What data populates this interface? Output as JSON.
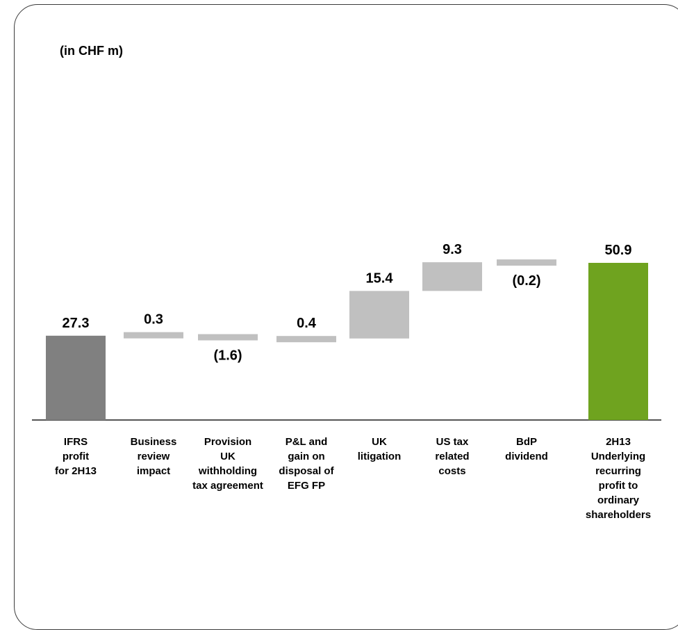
{
  "units_label": "(in CHF m)",
  "colors": {
    "start": "#808080",
    "step": "#c0c0c0",
    "end": "#6fa31f",
    "axis": "#555555",
    "border": "#3a3a3a"
  },
  "chart_data": {
    "type": "bar",
    "subtype": "waterfall",
    "title": "",
    "xlabel": "",
    "ylabel": "",
    "categories": [
      "IFRS profit for 2H13",
      "Business review impact",
      "Provision UK withholding tax agreement",
      "P&L and gain on disposal of EFG FP",
      "UK litigation",
      "US tax related costs",
      "BdP dividend",
      "2H13 Underlying recurring profit to ordinary shareholders"
    ],
    "category_lines": [
      [
        "IFRS",
        "profit",
        "for 2H13"
      ],
      [
        "Business",
        "review",
        "impact"
      ],
      [
        "Provision",
        "UK",
        "withholding",
        "tax agreement"
      ],
      [
        "P&L and",
        "gain on",
        "disposal of",
        "EFG FP"
      ],
      [
        "UK",
        "litigation"
      ],
      [
        "US tax",
        "related",
        "costs"
      ],
      [
        "BdP",
        "dividend"
      ],
      [
        "2H13",
        "Underlying",
        "recurring",
        "profit to",
        "ordinary",
        "shareholders"
      ]
    ],
    "values": [
      27.3,
      0.3,
      -1.6,
      0.4,
      15.4,
      9.3,
      -0.2,
      50.9
    ],
    "value_labels": [
      "27.3",
      "0.3",
      "(1.6)",
      "0.4",
      "15.4",
      "9.3",
      "(0.2)",
      "50.9"
    ],
    "kinds": [
      "total",
      "delta",
      "delta",
      "delta",
      "delta",
      "delta",
      "delta",
      "total"
    ],
    "ylim": [
      0,
      62
    ],
    "grid": false,
    "legend": "none"
  }
}
